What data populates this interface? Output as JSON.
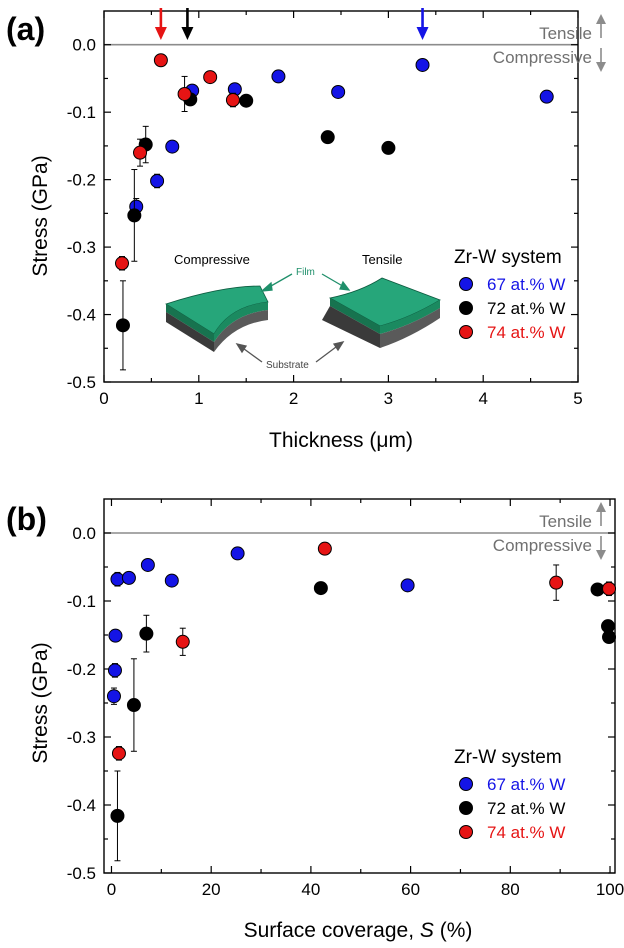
{
  "chart_data": [
    {
      "type": "scatter",
      "panel_label": "(a)",
      "xlabel": "Thickness (μm)",
      "ylabel": "Stress (GPa)",
      "xlim": [
        0,
        5
      ],
      "ylim": [
        -0.5,
        0.05
      ],
      "xticks": [
        "0",
        "1",
        "2",
        "3",
        "4",
        "5"
      ],
      "yticks": [
        "0.0",
        "-0.1",
        "-0.2",
        "-0.3",
        "-0.4",
        "-0.5"
      ],
      "annotations": {
        "tensile": "Tensile",
        "compressive": "Compressive"
      },
      "legend_title": "Zr-W system",
      "legend_position": "right",
      "series": [
        {
          "name": "67 at.% W",
          "color": "#1414e6",
          "points": [
            {
              "x": 0.34,
              "y": -0.24,
              "err": 0.012
            },
            {
              "x": 0.56,
              "y": -0.202,
              "err": 0.01
            },
            {
              "x": 0.72,
              "y": -0.151
            },
            {
              "x": 0.93,
              "y": -0.068
            },
            {
              "x": 1.38,
              "y": -0.066
            },
            {
              "x": 1.84,
              "y": -0.047
            },
            {
              "x": 2.47,
              "y": -0.07
            },
            {
              "x": 3.36,
              "y": -0.03
            },
            {
              "x": 4.67,
              "y": -0.077
            }
          ]
        },
        {
          "name": "72 at.% W",
          "color": "#000000",
          "points": [
            {
              "x": 0.2,
              "y": -0.416,
              "err": 0.066
            },
            {
              "x": 0.32,
              "y": -0.253,
              "err": 0.068
            },
            {
              "x": 0.44,
              "y": -0.148,
              "err": 0.027
            },
            {
              "x": 0.91,
              "y": -0.081
            },
            {
              "x": 1.5,
              "y": -0.083
            },
            {
              "x": 2.36,
              "y": -0.137
            },
            {
              "x": 3.0,
              "y": -0.153
            }
          ]
        },
        {
          "name": "74 at.% W",
          "color": "#e61414",
          "points": [
            {
              "x": 0.19,
              "y": -0.324,
              "err": 0.01
            },
            {
              "x": 0.38,
              "y": -0.16,
              "err": 0.02
            },
            {
              "x": 0.6,
              "y": -0.023
            },
            {
              "x": 0.85,
              "y": -0.073,
              "err": 0.026
            },
            {
              "x": 1.12,
              "y": -0.048
            },
            {
              "x": 1.36,
              "y": -0.082,
              "err": 0.01
            }
          ]
        }
      ],
      "markers": [
        {
          "x": 0.6,
          "color": "#e61414"
        },
        {
          "x": 0.88,
          "color": "#000000"
        },
        {
          "x": 3.36,
          "color": "#1414e6"
        }
      ],
      "inset": {
        "left": "Compressive",
        "right": "Tensile",
        "film": "Film",
        "substrate": "Substrate",
        "film_color": "#1f8f6a"
      }
    },
    {
      "type": "scatter",
      "panel_label": "(b)",
      "xlabel": "Surface coverage, S (%)",
      "ylabel": "Stress (GPa)",
      "xlim": [
        -1.5,
        101
      ],
      "ylim": [
        -0.5,
        0.05
      ],
      "xticks": [
        "0",
        "20",
        "40",
        "60",
        "80",
        "100"
      ],
      "yticks": [
        "0.0",
        "-0.1",
        "-0.2",
        "-0.3",
        "-0.4",
        "-0.5"
      ],
      "annotations": {
        "tensile": "Tensile",
        "compressive": "Compressive"
      },
      "legend_title": "Zr-W system",
      "legend_position": "bottom-right",
      "series": [
        {
          "name": "67 at.% W",
          "color": "#1414e6",
          "points": [
            {
              "x": 0.5,
              "y": -0.24,
              "err": 0.012
            },
            {
              "x": 0.7,
              "y": -0.202,
              "err": 0.01
            },
            {
              "x": 0.8,
              "y": -0.151
            },
            {
              "x": 1.2,
              "y": -0.068,
              "err": 0.01
            },
            {
              "x": 3.5,
              "y": -0.066
            },
            {
              "x": 7.3,
              "y": -0.047,
              "err": 0.008
            },
            {
              "x": 12.1,
              "y": -0.07
            },
            {
              "x": 25.3,
              "y": -0.03
            },
            {
              "x": 59.4,
              "y": -0.077
            }
          ]
        },
        {
          "name": "72 at.% W",
          "color": "#000000",
          "points": [
            {
              "x": 1.2,
              "y": -0.416,
              "err": 0.066
            },
            {
              "x": 4.5,
              "y": -0.253,
              "err": 0.068
            },
            {
              "x": 7.0,
              "y": -0.148,
              "err": 0.027
            },
            {
              "x": 42.0,
              "y": -0.081
            },
            {
              "x": 97.5,
              "y": -0.083
            },
            {
              "x": 99.6,
              "y": -0.137
            },
            {
              "x": 99.8,
              "y": -0.153
            }
          ]
        },
        {
          "name": "74 at.% W",
          "color": "#e61414",
          "points": [
            {
              "x": 1.5,
              "y": -0.324,
              "err": 0.01
            },
            {
              "x": 14.3,
              "y": -0.16,
              "err": 0.02
            },
            {
              "x": 42.8,
              "y": -0.023
            },
            {
              "x": 89.2,
              "y": -0.073,
              "err": 0.026
            },
            {
              "x": 99.8,
              "y": -0.082,
              "err": 0.01
            }
          ]
        }
      ]
    }
  ]
}
